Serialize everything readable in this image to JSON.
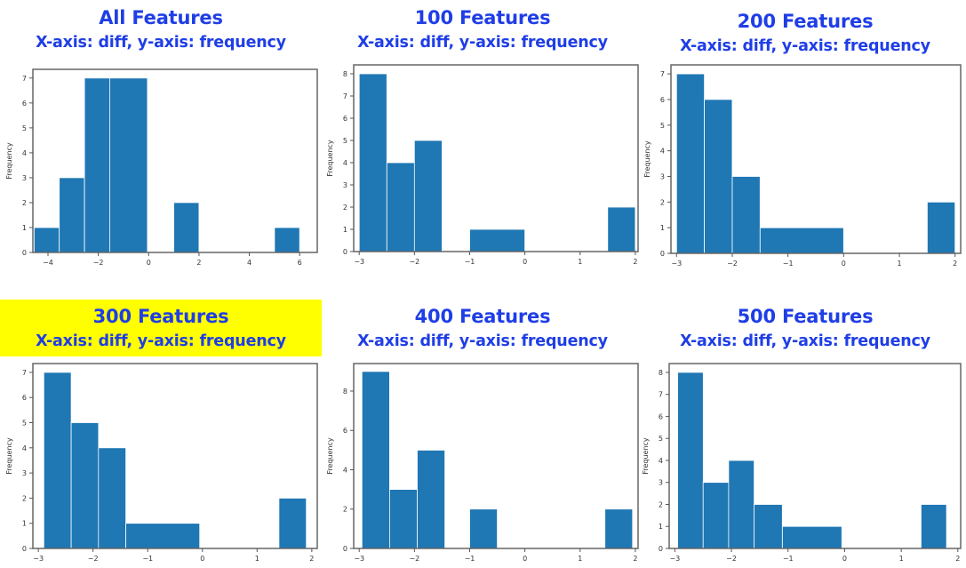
{
  "colors": {
    "title": "#1f3ee6",
    "bar": "#1f77b4",
    "highlight": "#ffff00"
  },
  "chart_data": [
    {
      "type": "bar",
      "title": "All Features",
      "subtitle": "X-axis: diff, y-axis: frequency",
      "ylabel": "Frequency",
      "xlim": [
        -4.6,
        6.7
      ],
      "ylim": [
        0,
        7.35
      ],
      "xticks": [
        -4,
        -2,
        0,
        2,
        4,
        6
      ],
      "yticks": [
        0,
        1,
        2,
        3,
        4,
        5,
        6,
        7
      ],
      "bins": [
        [
          -4.55,
          -3.55,
          1
        ],
        [
          -3.55,
          -2.55,
          3
        ],
        [
          -2.55,
          -1.55,
          7
        ],
        [
          -1.55,
          -0.05,
          7
        ],
        [
          1.0,
          2.0,
          2
        ],
        [
          5.0,
          6.0,
          1
        ]
      ]
    },
    {
      "type": "bar",
      "title": "100 Features",
      "subtitle": "X-axis: diff, y-axis: frequency",
      "ylabel": "Frequency",
      "xlim": [
        -3.1,
        2.05
      ],
      "ylim": [
        0,
        8.4
      ],
      "xticks": [
        -3,
        -2,
        -1,
        0,
        1,
        2
      ],
      "yticks": [
        0,
        1,
        2,
        3,
        4,
        5,
        6,
        7,
        8
      ],
      "bins": [
        [
          -3.0,
          -2.5,
          8
        ],
        [
          -2.5,
          -2.0,
          4
        ],
        [
          -2.0,
          -1.5,
          5
        ],
        [
          -1.0,
          0.0,
          1
        ],
        [
          1.5,
          2.0,
          2
        ]
      ]
    },
    {
      "type": "bar",
      "title": "200 Features",
      "subtitle": "X-axis: diff, y-axis: frequency",
      "ylabel": "Frequency",
      "xlim": [
        -3.1,
        2.1
      ],
      "ylim": [
        0,
        7.35
      ],
      "xticks": [
        -3,
        -2,
        -1,
        0,
        1,
        2
      ],
      "yticks": [
        0,
        1,
        2,
        3,
        4,
        5,
        6,
        7
      ],
      "bins": [
        [
          -3.0,
          -2.5,
          7
        ],
        [
          -2.5,
          -2.0,
          6
        ],
        [
          -2.0,
          -1.5,
          3
        ],
        [
          -1.5,
          0.0,
          1
        ],
        [
          1.5,
          2.0,
          2
        ]
      ]
    },
    {
      "type": "bar",
      "title": "300 Features",
      "subtitle": "X-axis: diff, y-axis: frequency",
      "ylabel": "Frequency",
      "highlighted": true,
      "xlim": [
        -3.1,
        2.1
      ],
      "ylim": [
        0,
        7.35
      ],
      "xticks": [
        -3,
        -2,
        -1,
        0,
        1,
        2
      ],
      "yticks": [
        0,
        1,
        2,
        3,
        4,
        5,
        6,
        7
      ],
      "bins": [
        [
          -2.9,
          -2.4,
          7
        ],
        [
          -2.4,
          -1.9,
          5
        ],
        [
          -1.9,
          -1.4,
          4
        ],
        [
          -1.4,
          -0.05,
          1
        ],
        [
          1.4,
          1.9,
          2
        ]
      ]
    },
    {
      "type": "bar",
      "title": "400 Features",
      "subtitle": "X-axis: diff, y-axis: frequency",
      "ylabel": "Frequency",
      "xlim": [
        -3.1,
        2.05
      ],
      "ylim": [
        0,
        9.4
      ],
      "xticks": [
        -3,
        -2,
        -1,
        0,
        1,
        2
      ],
      "yticks": [
        0,
        2,
        4,
        6,
        8
      ],
      "bins": [
        [
          -2.95,
          -2.45,
          9
        ],
        [
          -2.45,
          -1.95,
          3
        ],
        [
          -1.95,
          -1.45,
          5
        ],
        [
          -1.0,
          -0.5,
          2
        ],
        [
          1.45,
          1.95,
          2
        ]
      ]
    },
    {
      "type": "bar",
      "title": "500 Features",
      "subtitle": "X-axis: diff, y-axis: frequency",
      "ylabel": "Frequency",
      "xlim": [
        -3.1,
        2.05
      ],
      "ylim": [
        0,
        8.4
      ],
      "xticks": [
        -3,
        -2,
        -1,
        0,
        1,
        2
      ],
      "yticks": [
        0,
        1,
        2,
        3,
        4,
        5,
        6,
        7,
        8
      ],
      "bins": [
        [
          -2.95,
          -2.5,
          8
        ],
        [
          -2.5,
          -2.05,
          3
        ],
        [
          -2.05,
          -1.6,
          4
        ],
        [
          -1.6,
          -1.1,
          2
        ],
        [
          -1.1,
          -0.05,
          1
        ],
        [
          1.35,
          1.8,
          2
        ]
      ]
    }
  ]
}
